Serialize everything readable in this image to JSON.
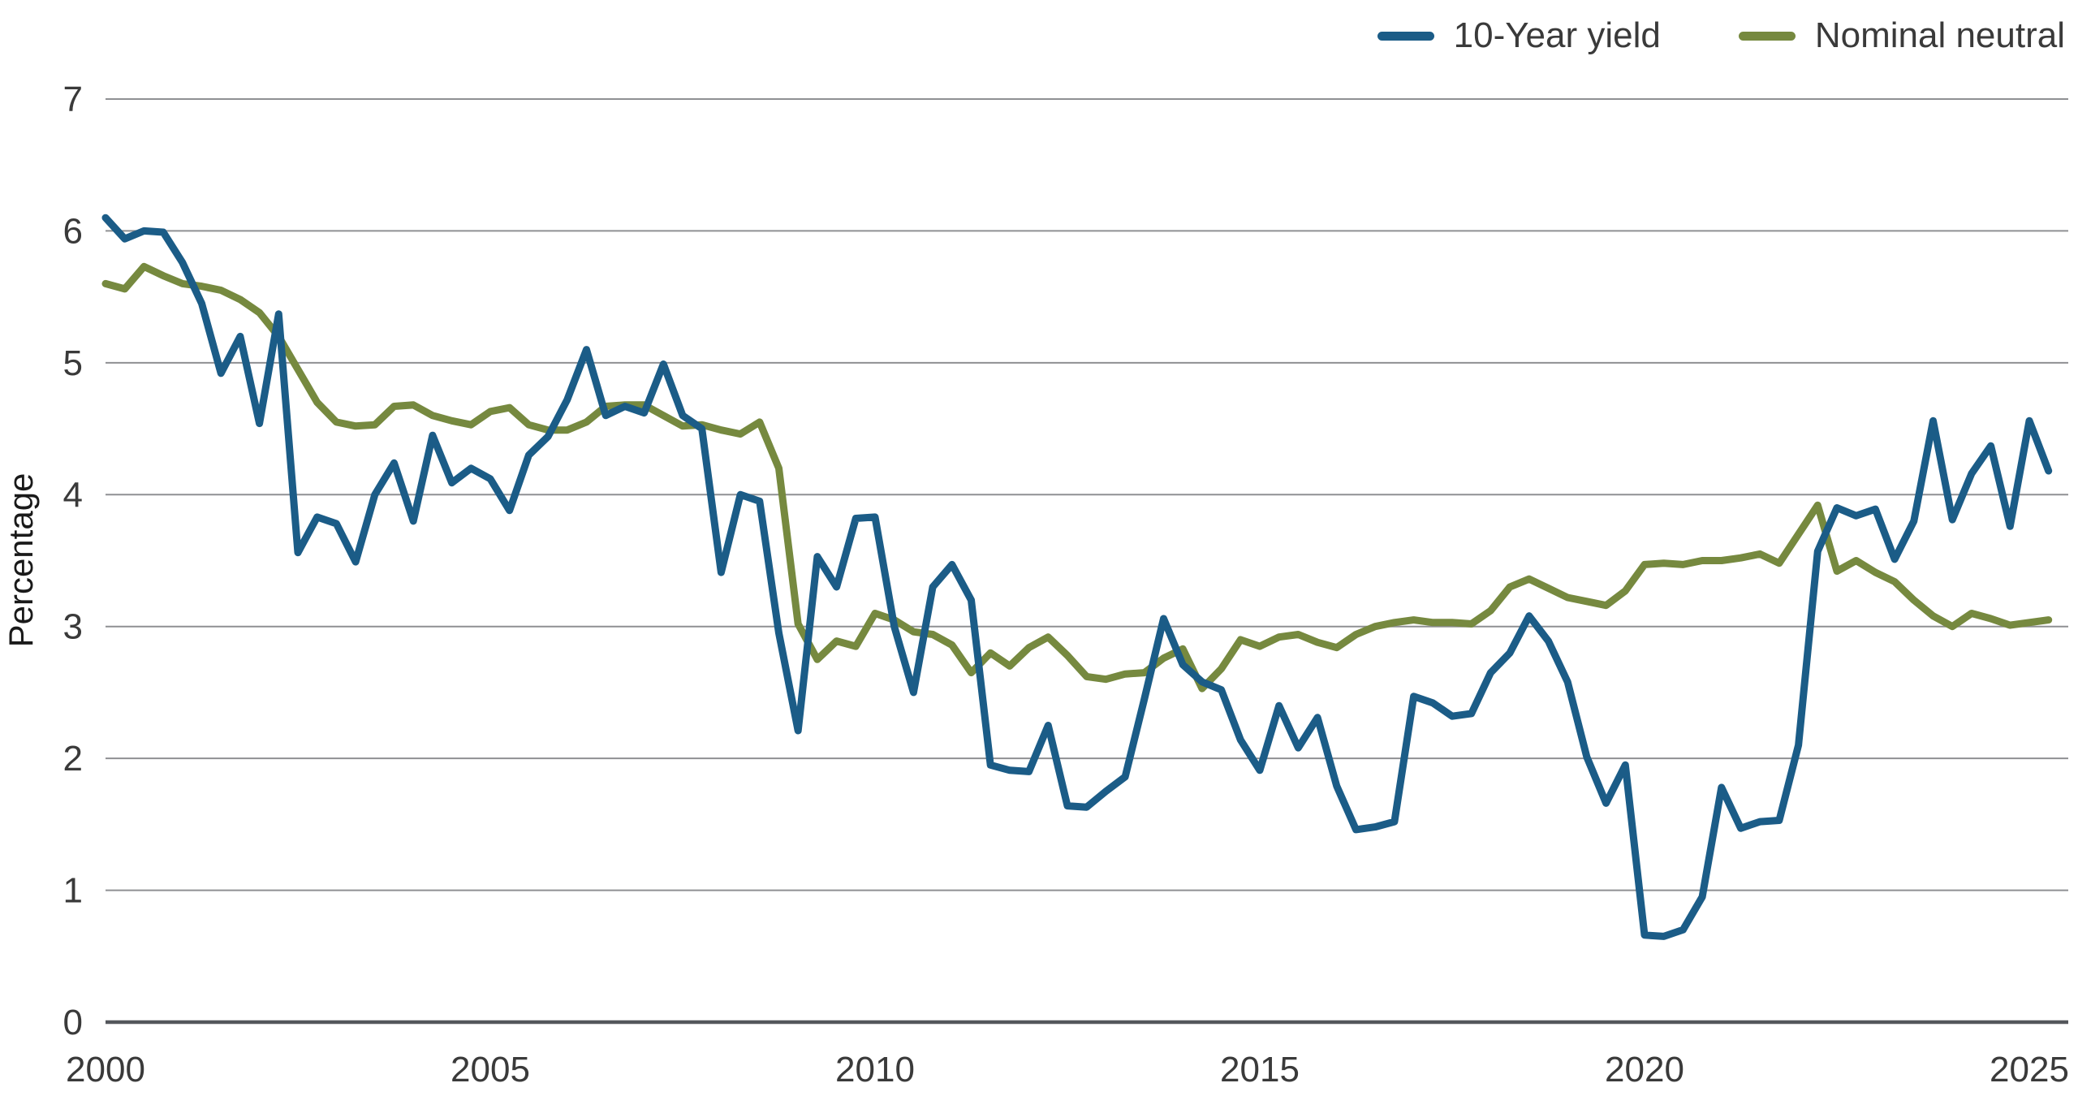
{
  "styles": {
    "background": "#ffffff",
    "grid_color": "#8f9093",
    "axis_color": "#54575c",
    "text_color": "#3a3a3a",
    "blue": "#1b5c87",
    "green": "#76893f"
  },
  "legend": {
    "items": [
      {
        "label": "10-Year yield",
        "color": "#1b5c87"
      },
      {
        "label": "Nominal neutral",
        "color": "#76893f"
      }
    ]
  },
  "chart_data": {
    "type": "line",
    "title": "",
    "xlabel": "",
    "ylabel": "Percentage",
    "ylim": [
      0,
      7
    ],
    "xlim": [
      2000,
      2025.25
    ],
    "y_ticks": [
      0,
      1,
      2,
      3,
      4,
      5,
      6,
      7
    ],
    "x_ticks": [
      2000,
      2005,
      2010,
      2015,
      2020,
      2025
    ],
    "grid": "horizontal",
    "legend_position": "top-right",
    "x_start": 2000.0,
    "x_step": 0.25,
    "series": [
      {
        "name": "10-Year yield",
        "color": "#1b5c87",
        "values": [
          6.1,
          5.94,
          6.0,
          5.99,
          5.76,
          5.45,
          4.92,
          5.2,
          4.54,
          5.37,
          3.56,
          3.83,
          3.78,
          3.49,
          4.0,
          4.24,
          3.8,
          4.45,
          4.09,
          4.2,
          4.12,
          3.88,
          4.3,
          4.44,
          4.72,
          5.1,
          4.6,
          4.67,
          4.62,
          4.99,
          4.6,
          4.5,
          3.41,
          4.0,
          3.95,
          2.95,
          2.21,
          3.53,
          3.3,
          3.82,
          3.83,
          3.0,
          2.5,
          3.3,
          3.47,
          3.2,
          1.95,
          1.91,
          1.9,
          2.25,
          1.64,
          1.63,
          1.75,
          1.86,
          2.45,
          3.06,
          2.71,
          2.58,
          2.52,
          2.14,
          1.91,
          2.4,
          2.08,
          2.31,
          1.79,
          1.46,
          1.48,
          1.52,
          2.47,
          2.42,
          2.32,
          2.34,
          2.65,
          2.8,
          3.08,
          2.89,
          2.58,
          2.01,
          1.66,
          1.95,
          0.66,
          0.65,
          0.7,
          0.95,
          1.78,
          1.47,
          1.52,
          1.53,
          2.1,
          3.57,
          3.9,
          3.84,
          3.89,
          3.51,
          3.8,
          4.56,
          3.81,
          4.16,
          4.37,
          3.76,
          4.56,
          4.18
        ]
      },
      {
        "name": "Nominal neutral",
        "color": "#76893f",
        "values": [
          5.6,
          5.56,
          5.73,
          5.66,
          5.6,
          5.58,
          5.55,
          5.48,
          5.38,
          5.2,
          4.95,
          4.7,
          4.55,
          4.52,
          4.53,
          4.67,
          4.68,
          4.6,
          4.56,
          4.53,
          4.63,
          4.66,
          4.53,
          4.49,
          4.49,
          4.55,
          4.67,
          4.68,
          4.68,
          4.6,
          4.52,
          4.53,
          4.49,
          4.46,
          4.55,
          4.2,
          3.02,
          2.75,
          2.89,
          2.85,
          3.1,
          3.05,
          2.96,
          2.94,
          2.86,
          2.65,
          2.8,
          2.7,
          2.84,
          2.92,
          2.78,
          2.62,
          2.6,
          2.64,
          2.65,
          2.76,
          2.83,
          2.53,
          2.68,
          2.9,
          2.85,
          2.92,
          2.94,
          2.88,
          2.84,
          2.94,
          3.0,
          3.03,
          3.05,
          3.03,
          3.03,
          3.02,
          3.12,
          3.3,
          3.36,
          3.29,
          3.22,
          3.19,
          3.16,
          3.27,
          3.47,
          3.48,
          3.47,
          3.5,
          3.5,
          3.52,
          3.55,
          3.48,
          3.7,
          3.92,
          3.42,
          3.5,
          3.41,
          3.34,
          3.2,
          3.08,
          3.0,
          3.1,
          3.06,
          3.01,
          3.03,
          3.05
        ]
      }
    ]
  }
}
